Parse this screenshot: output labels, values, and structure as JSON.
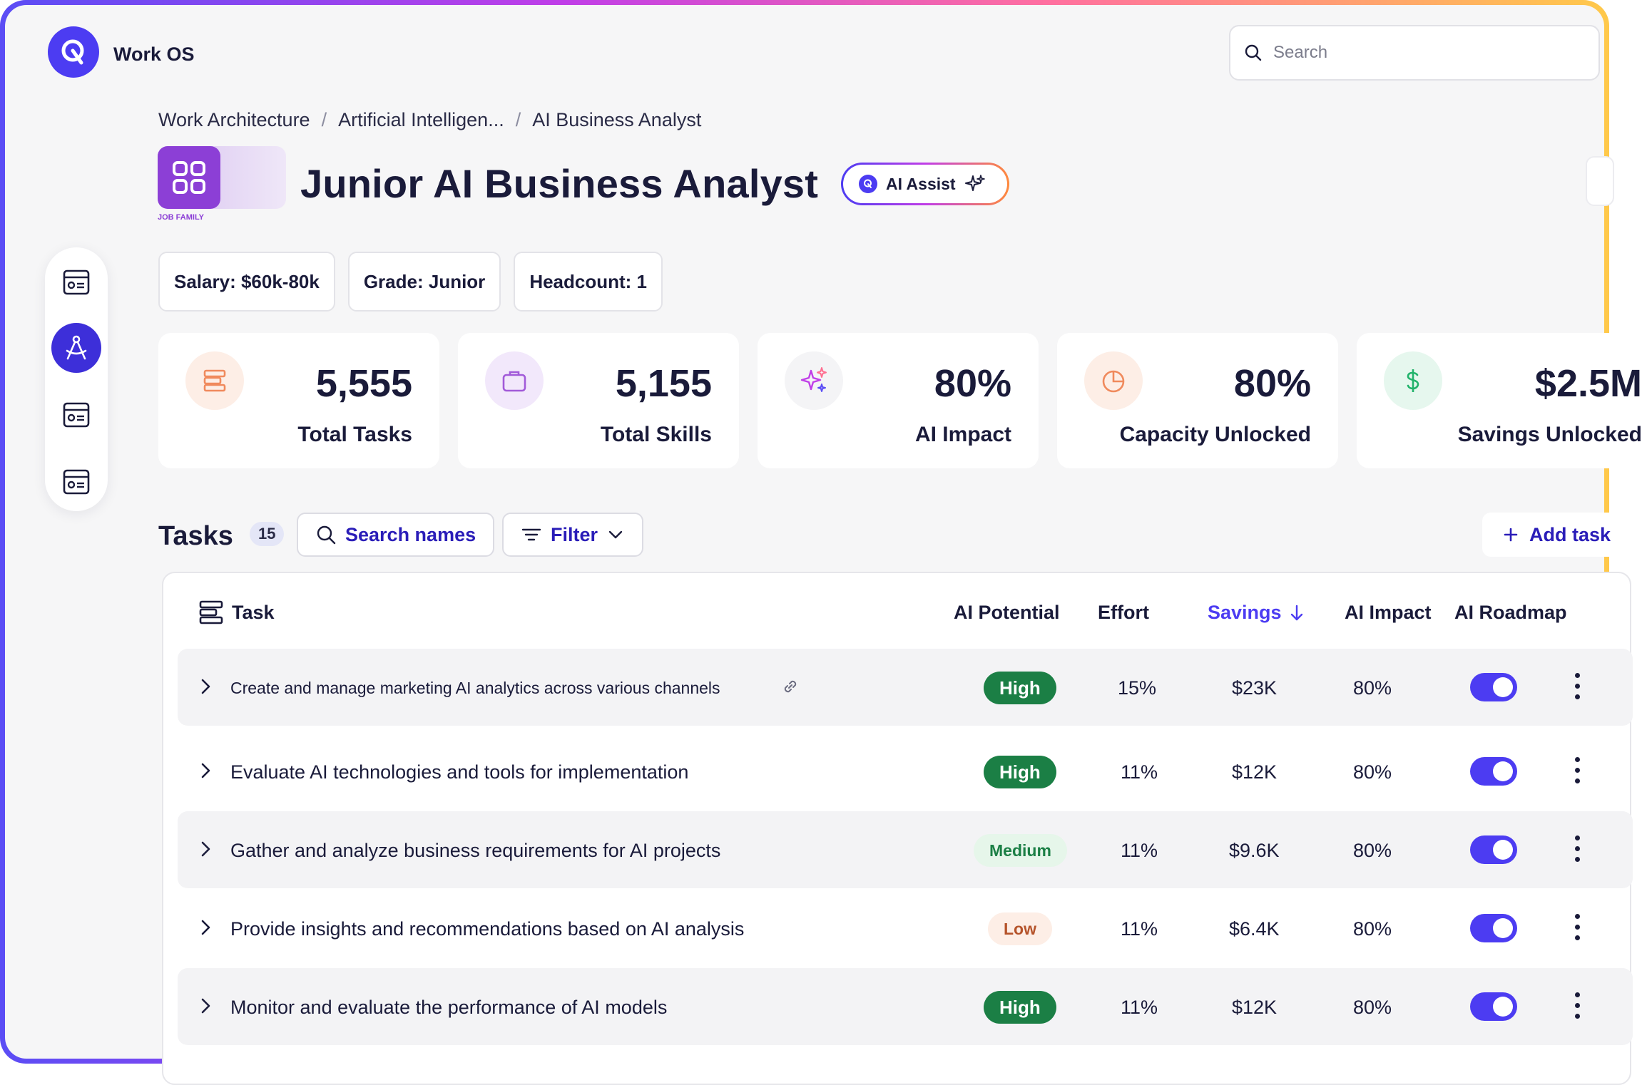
{
  "app": {
    "brand": "Work OS"
  },
  "search": {
    "placeholder": "Search"
  },
  "breadcrumb": [
    "Work Architecture",
    "Artificial Intelligen...",
    "AI Business Analyst"
  ],
  "breadcrumb_sep": "/",
  "job_family": {
    "label": "JOB FAMILY"
  },
  "page": {
    "title": "Junior AI Business Analyst",
    "ai_assist_label": "AI Assist"
  },
  "pills": [
    "Salary: $60k-80k",
    "Grade: Junior",
    "Headcount: 1"
  ],
  "stats": [
    {
      "value": "5,555",
      "label": "Total Tasks",
      "icon": "stack-icon",
      "icon_color": "#f08a5d",
      "icon_bg": "#fdeee6"
    },
    {
      "value": "5,155",
      "label": "Total Skills",
      "icon": "briefcase-icon",
      "icon_color": "#a25bd9",
      "icon_bg": "#f2e8fb"
    },
    {
      "value": "80%",
      "label": "AI Impact",
      "icon": "sparkles-icon",
      "icon_color": "#c03ee8",
      "icon_bg": "#f4f4f6"
    },
    {
      "value": "80%",
      "label": "Capacity Unlocked",
      "icon": "pie-chart-icon",
      "icon_color": "#f08a5d",
      "icon_bg": "#fdeee6"
    },
    {
      "value": "$2.5M",
      "label": "Savings Unlocked",
      "icon": "dollar-icon",
      "icon_color": "#22b36b",
      "icon_bg": "#e6f7ee"
    }
  ],
  "tasks": {
    "title": "Tasks",
    "count": "15",
    "search_label": "Search names",
    "filter_label": "Filter",
    "add_label": "Add task"
  },
  "table": {
    "headers": {
      "task": "Task",
      "ai_potential": "AI Potential",
      "effort": "Effort",
      "savings": "Savings",
      "ai_impact": "AI Impact",
      "ai_roadmap": "AI Roadmap"
    },
    "rows": [
      {
        "task": "Create and manage marketing AI analytics across various channels",
        "ai_potential": "High",
        "effort": "15%",
        "savings": "$23K",
        "ai_impact": "80%",
        "roadmap_on": true
      },
      {
        "task": "Evaluate AI technologies and tools for implementation",
        "ai_potential": "High",
        "effort": "11%",
        "savings": "$12K",
        "ai_impact": "80%",
        "roadmap_on": true
      },
      {
        "task": "Gather and analyze business requirements for AI projects",
        "ai_potential": "Medium",
        "effort": "11%",
        "savings": "$9.6K",
        "ai_impact": "80%",
        "roadmap_on": true
      },
      {
        "task": "Provide insights and recommendations based on AI analysis",
        "ai_potential": "Low",
        "effort": "11%",
        "savings": "$6.4K",
        "ai_impact": "80%",
        "roadmap_on": true
      },
      {
        "task": "Monitor and evaluate the performance of AI models",
        "ai_potential": "High",
        "effort": "11%",
        "savings": "$12K",
        "ai_impact": "80%",
        "roadmap_on": true
      }
    ]
  },
  "colors": {
    "accent": "#4c3cf2",
    "accent_dark": "#2a1db8",
    "high": "#1b7f45",
    "job_family": "#8c3fd6"
  }
}
